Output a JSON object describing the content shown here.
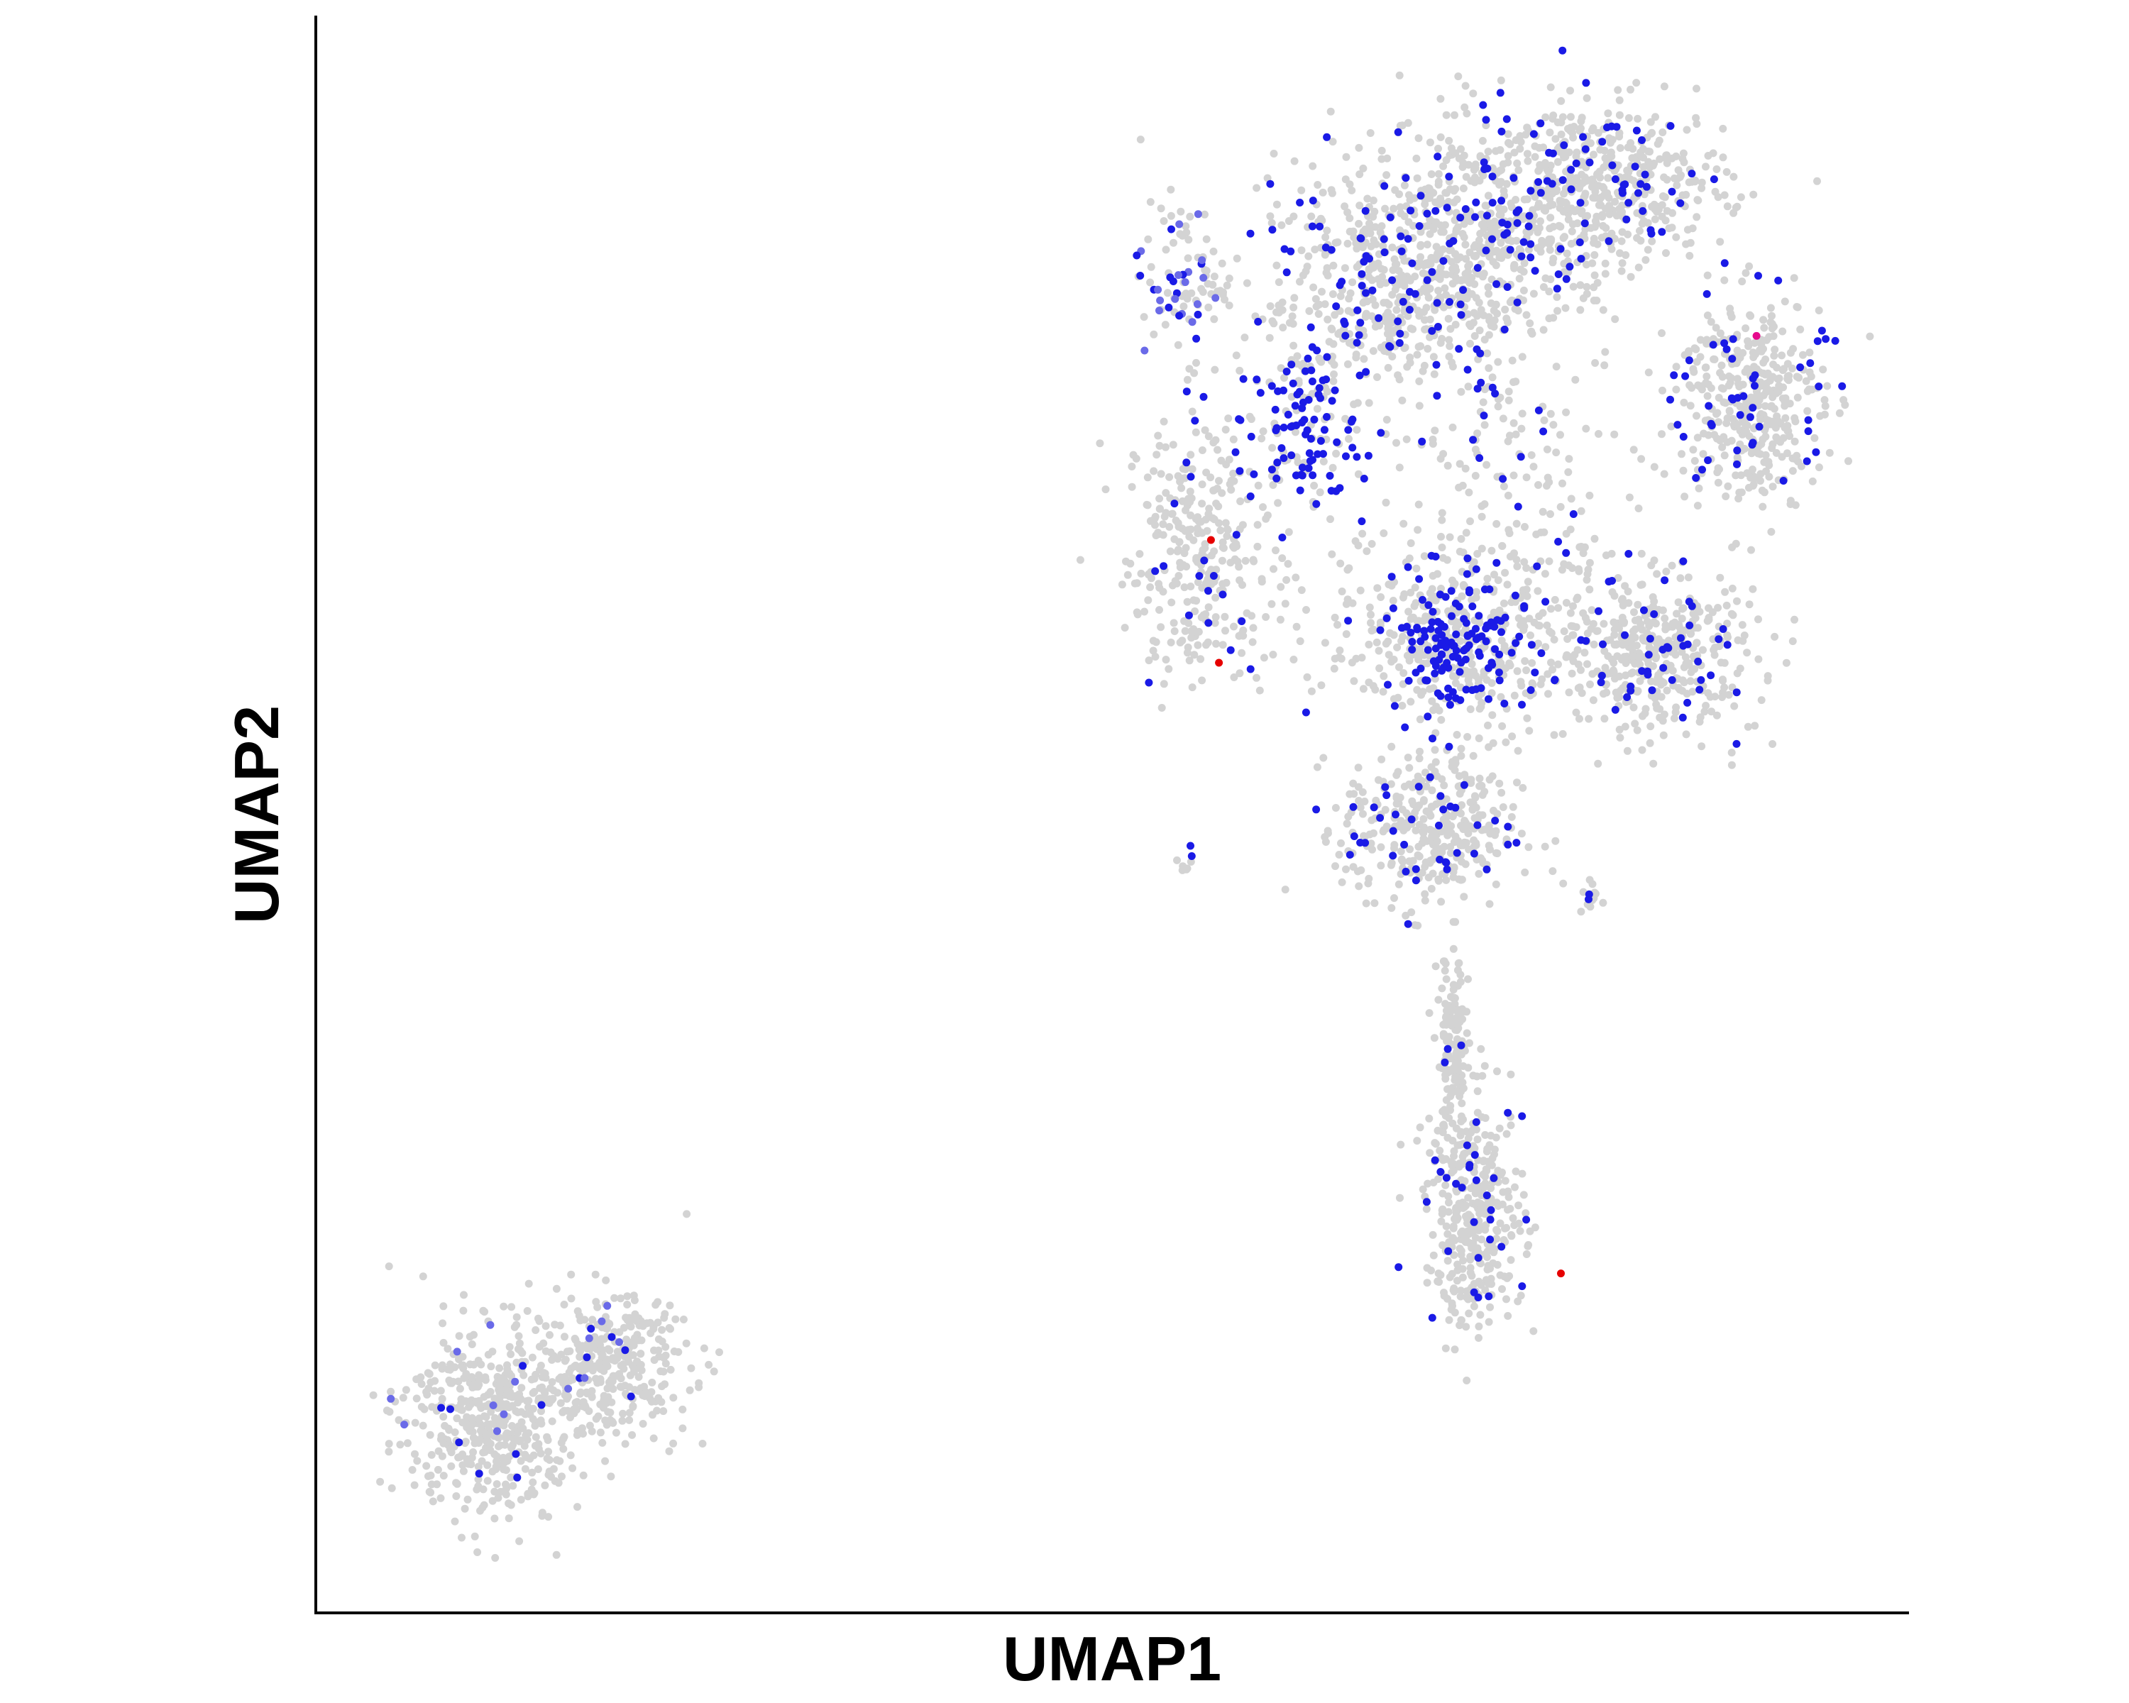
{
  "chart_data": {
    "type": "scatter",
    "title": "",
    "xlabel": "UMAP1",
    "ylabel": "UMAP2",
    "grid": false,
    "legend": "none",
    "tick_labels": "none",
    "colors": {
      "background": "#d3d3d3",
      "expressed": "#1a1ae6",
      "expressed_faint": "#6a6ae8",
      "high": "#e60000",
      "medium": "#e60a8c",
      "axis": "#000000"
    },
    "regions": [
      {
        "name": "main-cloud-left-lobe",
        "cx": 0.555,
        "cy": 0.665,
        "rx": 0.042,
        "ry": 0.075,
        "bg": 300,
        "blue": 22
      },
      {
        "name": "main-cloud-upper-left",
        "cx": 0.675,
        "cy": 0.82,
        "rx": 0.09,
        "ry": 0.06,
        "bg": 420,
        "blue": 85
      },
      {
        "name": "main-cloud-top-center",
        "cx": 0.73,
        "cy": 0.87,
        "rx": 0.08,
        "ry": 0.06,
        "bg": 450,
        "blue": 60
      },
      {
        "name": "main-cloud-top-right",
        "cx": 0.815,
        "cy": 0.895,
        "rx": 0.065,
        "ry": 0.045,
        "bg": 380,
        "blue": 48
      },
      {
        "name": "main-cloud-right-lobe",
        "cx": 0.9,
        "cy": 0.76,
        "rx": 0.042,
        "ry": 0.06,
        "bg": 380,
        "blue": 50
      },
      {
        "name": "main-cloud-right-lower",
        "cx": 0.845,
        "cy": 0.6,
        "rx": 0.055,
        "ry": 0.045,
        "bg": 350,
        "blue": 40
      },
      {
        "name": "main-cloud-center",
        "cx": 0.73,
        "cy": 0.62,
        "rx": 0.09,
        "ry": 0.06,
        "bg": 420,
        "blue": 45
      },
      {
        "name": "main-cloud-lower-center",
        "cx": 0.7,
        "cy": 0.49,
        "rx": 0.05,
        "ry": 0.045,
        "bg": 350,
        "blue": 40
      },
      {
        "name": "main-cloud-sparse-middle",
        "cx": 0.75,
        "cy": 0.73,
        "rx": 0.07,
        "ry": 0.06,
        "bg": 80,
        "blue": 10
      },
      {
        "name": "central-dense-cluster",
        "cx": 0.713,
        "cy": 0.607,
        "rx": 0.035,
        "ry": 0.04,
        "bg": 60,
        "blue": 110
      },
      {
        "name": "upper-dense-cluster",
        "cx": 0.62,
        "cy": 0.74,
        "rx": 0.03,
        "ry": 0.045,
        "bg": 50,
        "blue": 75
      },
      {
        "name": "purple-patch",
        "cx": 0.545,
        "cy": 0.835,
        "rx": 0.025,
        "ry": 0.045,
        "bg": 60,
        "blue": 30
      },
      {
        "name": "stem",
        "cx": 0.714,
        "cy": 0.35,
        "rx": 0.009,
        "ry": 0.06,
        "bg": 130,
        "blue": 3
      },
      {
        "name": "tail",
        "cx": 0.728,
        "cy": 0.25,
        "rx": 0.028,
        "ry": 0.065,
        "bg": 360,
        "blue": 30
      },
      {
        "name": "small-cluster-a",
        "cx": 0.545,
        "cy": 0.47,
        "rx": 0.006,
        "ry": 0.008,
        "bg": 6,
        "blue": 2
      },
      {
        "name": "small-cluster-b",
        "cx": 0.8,
        "cy": 0.45,
        "rx": 0.007,
        "ry": 0.01,
        "bg": 12,
        "blue": 2
      },
      {
        "name": "bottom-left-cluster",
        "cx": 0.11,
        "cy": 0.12,
        "rx": 0.05,
        "ry": 0.055,
        "bg": 480,
        "blue": 16
      },
      {
        "name": "bottom-left-arm",
        "cx": 0.185,
        "cy": 0.155,
        "rx": 0.045,
        "ry": 0.04,
        "bg": 320,
        "blue": 12
      }
    ],
    "highlights": [
      {
        "x": 0.562,
        "y": 0.672,
        "level": "high"
      },
      {
        "x": 0.567,
        "y": 0.595,
        "level": "high"
      },
      {
        "x": 0.782,
        "y": 0.212,
        "level": "high"
      },
      {
        "x": 0.905,
        "y": 0.8,
        "level": "medium"
      }
    ]
  }
}
